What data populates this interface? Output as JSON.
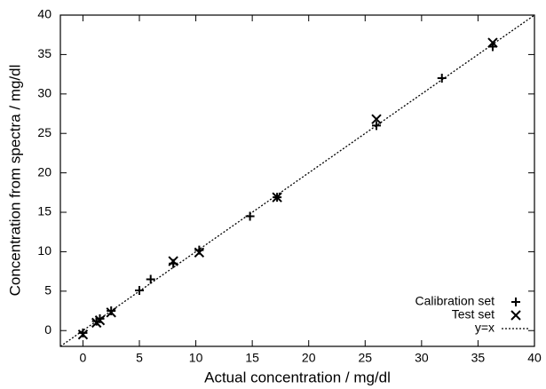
{
  "chart_data": {
    "type": "scatter",
    "x_label": "Actual concentration / mg/dl",
    "y_label": "Concentration from spectra / mg/dl",
    "xlim": [
      -2,
      40
    ],
    "ylim": [
      -2,
      40
    ],
    "xticks": [
      0,
      5,
      10,
      15,
      20,
      25,
      30,
      35,
      40
    ],
    "yticks": [
      0,
      5,
      10,
      15,
      20,
      25,
      30,
      35,
      40
    ],
    "legend": "lower right",
    "series": [
      {
        "name": "Calibration set",
        "color": "#000000",
        "marker": "plus",
        "x": [
          0,
          1.2,
          1.5,
          2.5,
          5,
          6,
          8,
          10.3,
          14.8,
          17.2,
          26,
          31.8,
          36.3
        ],
        "values": [
          -0.3,
          1.2,
          1.5,
          2.5,
          5.1,
          6.5,
          8.5,
          10.2,
          14.5,
          16.9,
          26,
          32,
          36
        ]
      },
      {
        "name": "Test set",
        "color": "#000000",
        "marker": "cross",
        "x": [
          0,
          1.2,
          1.5,
          2.5,
          8,
          10.3,
          17.2,
          26,
          36.3
        ],
        "values": [
          -0.5,
          1,
          1.3,
          2.3,
          8.8,
          9.9,
          16.9,
          26.8,
          36.5
        ]
      },
      {
        "name": "y=x",
        "color": "#000000",
        "marker": "line",
        "x": [
          -2,
          40
        ],
        "values": [
          -2,
          40
        ]
      }
    ]
  }
}
